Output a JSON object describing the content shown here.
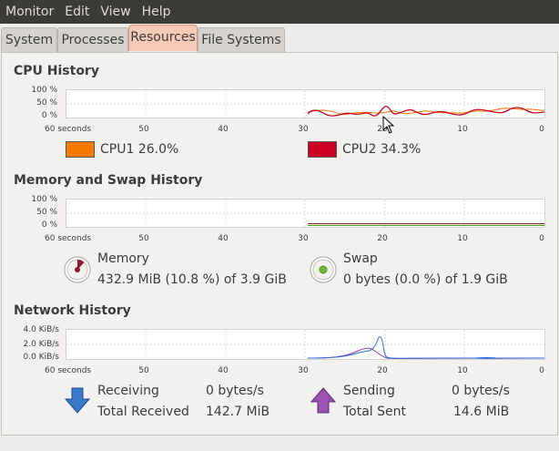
{
  "menubar": {
    "items": [
      "Monitor",
      "Edit",
      "View",
      "Help"
    ]
  },
  "tabs": [
    {
      "label": "System"
    },
    {
      "label": "Processes"
    },
    {
      "label": "Resources"
    },
    {
      "label": "File Systems"
    }
  ],
  "cpu": {
    "title": "CPU History",
    "y_ticks": [
      "100 %",
      "50 %",
      "0 %"
    ],
    "x_ticks": [
      "60 seconds",
      "50",
      "40",
      "30",
      "20",
      "10",
      "0"
    ],
    "cpu1": {
      "label": "CPU1",
      "value": "26.0%",
      "color": "#f57900"
    },
    "cpu2": {
      "label": "CPU2",
      "value": "34.3%",
      "color": "#cc0022"
    }
  },
  "memory": {
    "title": "Memory and Swap History",
    "y_ticks": [
      "100 %",
      "50 %",
      "0 %"
    ],
    "x_ticks": [
      "60 seconds",
      "50",
      "40",
      "30",
      "20",
      "10",
      "0"
    ],
    "memory": {
      "label": "Memory",
      "detail": "432.9 MiB (10.8 %) of 3.9 GiB",
      "color": "#8e1c2f"
    },
    "swap": {
      "label": "Swap",
      "detail": "0 bytes (0.0 %) of 1.9 GiB",
      "color": "#4e9a06"
    }
  },
  "network": {
    "title": "Network History",
    "y_ticks": [
      "4.0 KiB/s",
      "2.0 KiB/s",
      "0.0 KiB/s"
    ],
    "x_ticks": [
      "60 seconds",
      "50",
      "40",
      "30",
      "20",
      "10",
      "0"
    ],
    "receiving": {
      "label": "Receiving",
      "rate": "0 bytes/s",
      "total_label": "Total Received",
      "total": "142.7 MiB",
      "color": "#2e6fd8"
    },
    "sending": {
      "label": "Sending",
      "rate": "0 bytes/s",
      "total_label": "Total Sent",
      "total": "14.6 MiB",
      "color": "#8e3fa6"
    }
  }
}
